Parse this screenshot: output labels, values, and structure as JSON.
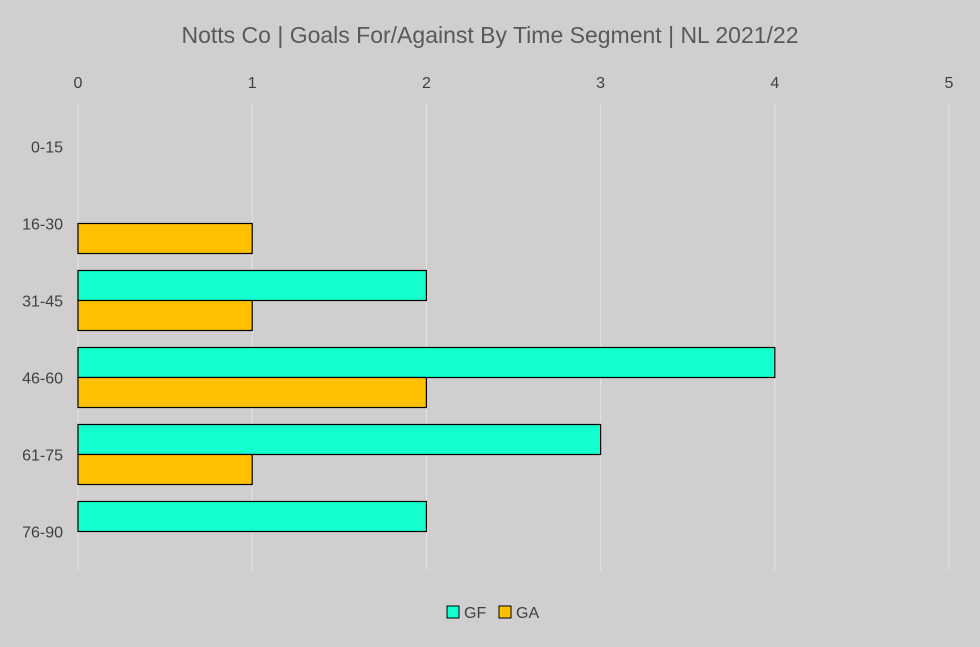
{
  "chart_data": {
    "type": "bar",
    "orientation": "horizontal",
    "title": "Notts Co | Goals For/Against By Time Segment | NL 2021/22",
    "categories": [
      "0-15",
      "16-30",
      "31-45",
      "46-60",
      "61-75",
      "76-90"
    ],
    "series": [
      {
        "name": "GF",
        "color": "#13ffce",
        "values": [
          0,
          0,
          2,
          4,
          3,
          2
        ]
      },
      {
        "name": "GA",
        "color": "#ffc000",
        "values": [
          0,
          1,
          1,
          2,
          1,
          0
        ]
      }
    ],
    "xlim": [
      0,
      5
    ],
    "xticks": [
      "0",
      "1",
      "2",
      "3",
      "4",
      "5"
    ],
    "x_axis_position": "top",
    "grid": true,
    "legend": "bottom",
    "background": "#d0cece",
    "bar_outline": "#000000"
  }
}
